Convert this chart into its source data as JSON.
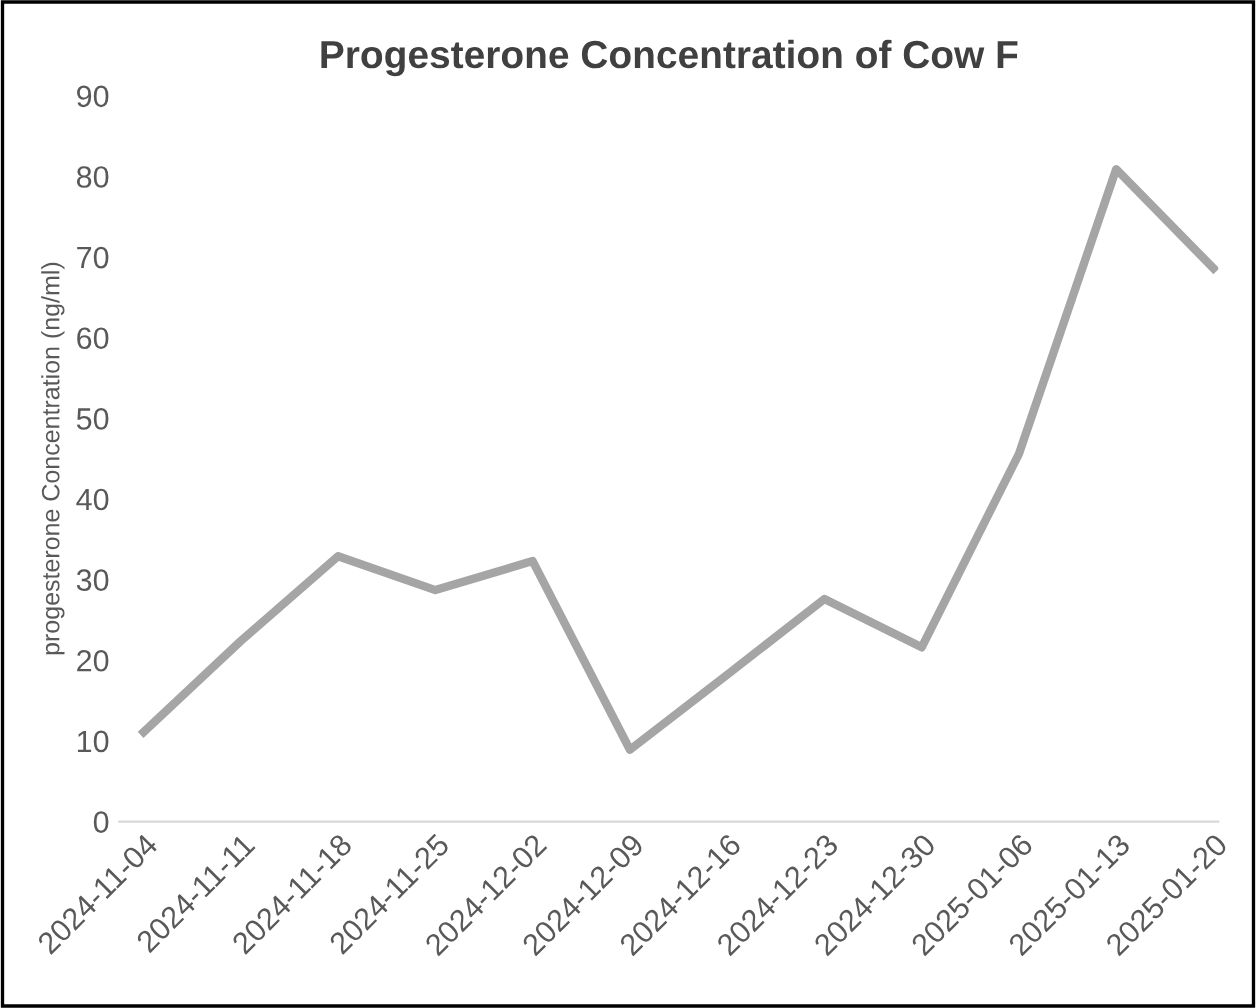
{
  "chart_data": {
    "type": "line",
    "title": "Progesterone Concentration of Cow F",
    "ylabel": "progesterone Concentration (ng/ml)",
    "categories": [
      "2024-11-04",
      "2024-11-11",
      "2024-11-18",
      "2024-11-25",
      "2024-12-02",
      "2024-12-09",
      "2024-12-16",
      "2024-12-23",
      "2024-12-30",
      "2025-01-06",
      "2025-01-13",
      "2025-01-20"
    ],
    "series": [
      {
        "color": "#a5a5a5",
        "values": [
          11.1,
          22.4,
          32.9,
          28.7,
          32.3,
          8.9,
          18.2,
          27.6,
          21.6,
          45.6,
          80.9,
          68.6
        ]
      }
    ],
    "ylim": [
      0,
      90
    ],
    "yticks": [
      0,
      10,
      20,
      30,
      40,
      50,
      60,
      70,
      80,
      90
    ],
    "grid": false,
    "marker": "none",
    "line_style": "solid"
  }
}
